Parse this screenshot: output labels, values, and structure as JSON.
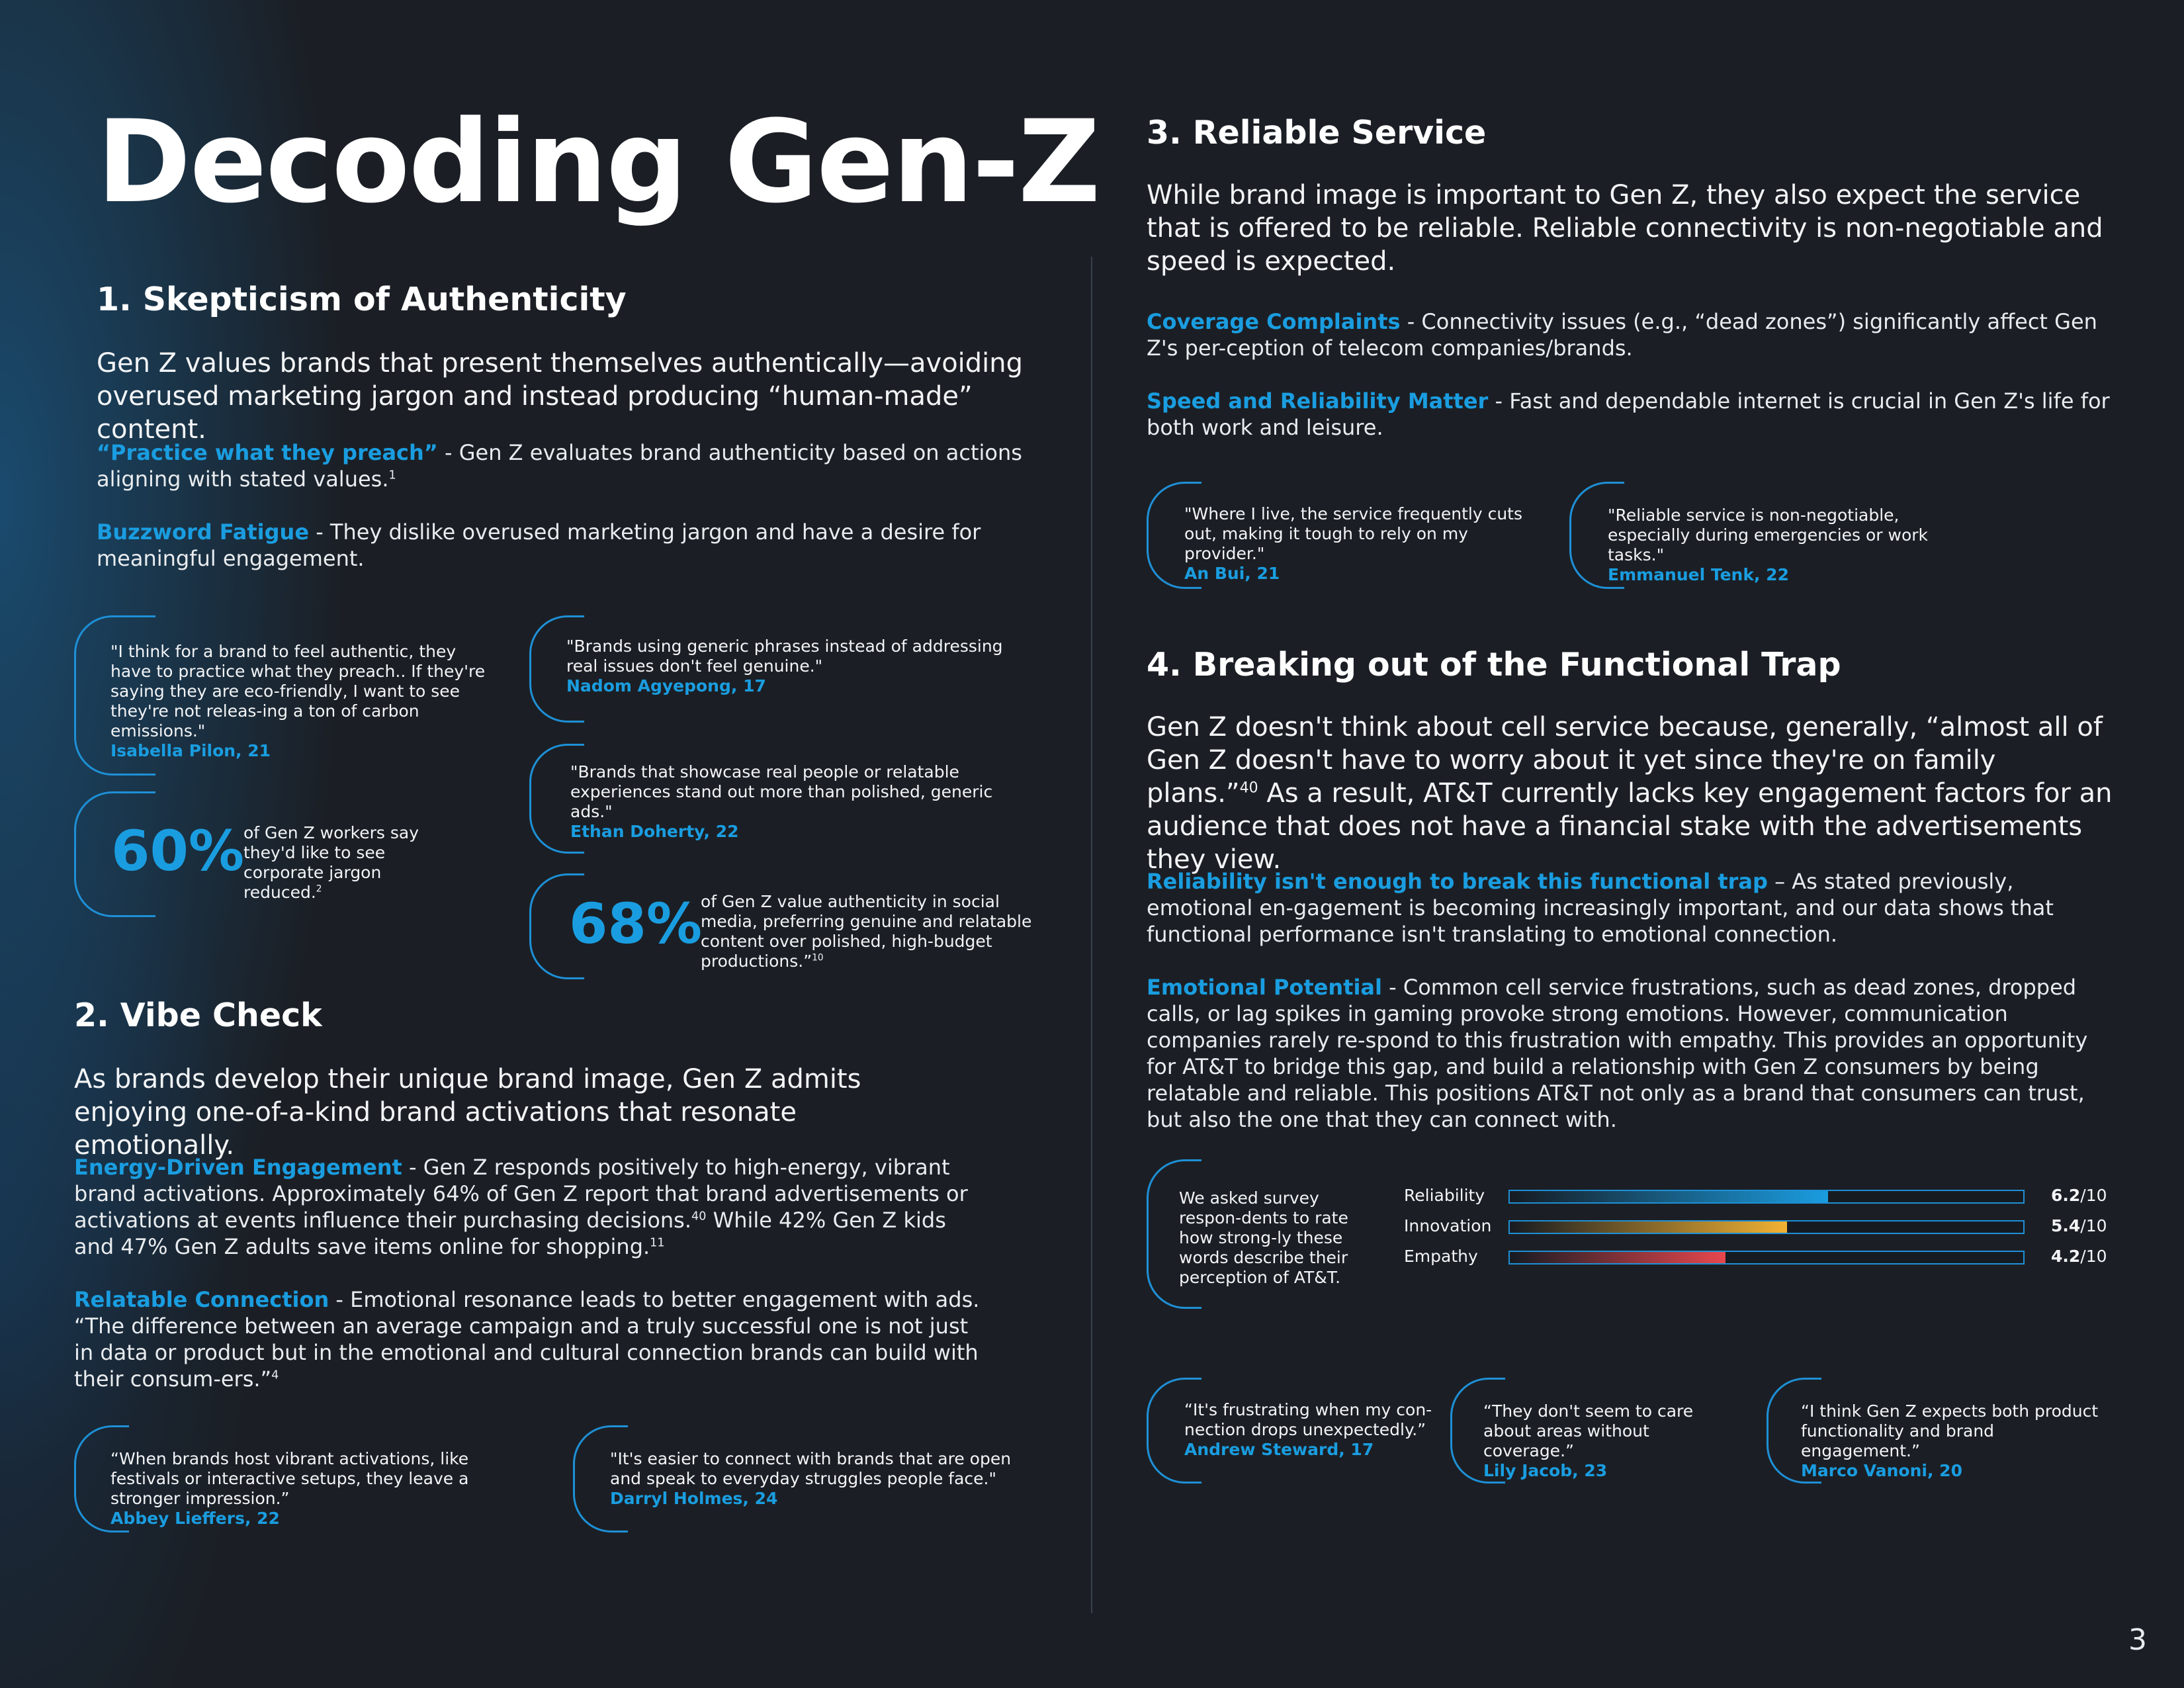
{
  "page": {
    "title": "Decoding Gen-Z",
    "page_number": "3"
  },
  "section1": {
    "heading": "1. Skepticism of Authenticity",
    "lead": "Gen Z values brands that present themselves authentically—avoiding overused marketing jargon and instead producing “human-made” content.",
    "points": [
      {
        "label": "“Practice what they preach”",
        "text": " - Gen Z evaluates brand authenticity based on actions aligning with stated values.",
        "sup": "1"
      },
      {
        "label": "Buzzword Fatigue",
        "text": " - They dislike overused marketing jargon and have a desire for meaningful engagement.",
        "sup": ""
      }
    ],
    "quotes": [
      {
        "text": "\"I think for a brand to feel authentic, they have to practice what they preach.. If they're saying they are eco-friendly, I want to see they're not releas-ing a ton of carbon emissions.\"",
        "name": "Isabella Pilon, 21"
      },
      {
        "text": "\"Brands using generic phrases instead of addressing real issues don't feel genuine.\"",
        "name": "Nadom Agyepong, 17"
      },
      {
        "text": "\"Brands that showcase real people or relatable experiences stand out more than polished, generic ads.\"",
        "name": "Ethan Doherty, 22"
      }
    ],
    "stats": [
      {
        "value": "60%",
        "text": "of Gen Z workers say they'd like to see corporate jargon reduced.",
        "sup": "2"
      },
      {
        "value": "68%",
        "text": "of Gen Z value authenticity in social media, preferring genuine and relatable content over polished, high-budget productions.”",
        "sup": "10"
      }
    ]
  },
  "section2": {
    "heading": "2. Vibe Check",
    "lead": "As brands develop their unique brand image, Gen Z admits enjoying one-of-a-kind brand activations that resonate emotionally.",
    "points": [
      {
        "label": "Energy-Driven Engagement",
        "text": " - Gen Z responds positively to high-energy, vibrant brand activations. Approximately 64% of Gen Z report that brand advertisements or activations at events influence their purchasing decisions.",
        "sup": "40",
        "text2": " While 42% Gen Z kids and 47% Gen Z adults save items online for shopping.",
        "sup2": "11"
      },
      {
        "label": "Relatable Connection",
        "text": " - Emotional resonance leads to better engagement with ads. “The difference between an average campaign and a truly successful one is not just in data or product but in the emotional and cultural connection brands can build with their consum-ers.”",
        "sup": "4"
      }
    ],
    "quotes": [
      {
        "text": "“When brands host vibrant activations, like festivals or interactive setups, they leave a stronger impression.”",
        "name": "Abbey Lieffers, 22"
      },
      {
        "text": "\"It's easier to connect with brands that are open and speak to everyday struggles people face.\"",
        "name": "Darryl Holmes, 24"
      }
    ]
  },
  "section3": {
    "heading": "3. Reliable Service",
    "lead": "While brand image is important to Gen Z, they also expect the service that is offered to be reliable. Reliable connectivity is non-negotiable and speed is expected.",
    "points": [
      {
        "label": "Coverage Complaints",
        "text": " - Connectivity issues (e.g., “dead zones”) significantly affect Gen Z's per-ception of telecom companies/brands."
      },
      {
        "label": "Speed and Reliability Matter",
        "text": " - Fast and dependable internet is crucial in Gen Z's life for both work and leisure."
      }
    ],
    "quotes": [
      {
        "text": "\"Where I live, the service frequently cuts out, making it tough to rely on my provider.\"",
        "name": "An Bui, 21"
      },
      {
        "text": "\"Reliable service is non-negotiable, especially during emergencies or work tasks.\"",
        "name": "Emmanuel Tenk, 22"
      }
    ]
  },
  "section4": {
    "heading": "4. Breaking out of the Functional Trap",
    "lead": "Gen Z doesn't think about cell service because, generally, “almost all of Gen Z doesn't have to worry about it yet since they're on family plans.”",
    "lead_sup": "40",
    "lead2": " As a result, AT&T currently lacks key engagement factors for an audience that does not have a financial stake with the advertisements they view.",
    "points": [
      {
        "label": "Reliability isn't enough to break this functional trap",
        "text": " – As stated previously, emotional en-gagement is becoming increasingly important, and our data shows that functional performance isn't translating to emotional connection."
      },
      {
        "label": "Emotional Potential",
        "text": " - Common cell service frustrations, such as dead zones, dropped calls, or lag spikes in gaming provoke strong emotions. However, communication companies rarely re-spond to this frustration with empathy. This provides an opportunity for AT&T to bridge this gap, and build a relationship with Gen Z consumers by being relatable and reliable. This positions AT&T not only as a brand that consumers can trust, but also the one that they can connect with."
      }
    ],
    "survey_intro": "We asked survey respon-dents to rate how strong-ly these words describe their perception of AT&T.",
    "quotes": [
      {
        "text": "“It's frustrating when my con-nection drops unexpectedly.”",
        "name": "Andrew Steward, 17"
      },
      {
        "text": "“They don't seem to care about areas without coverage.”",
        "name": "Lily Jacob, 23"
      },
      {
        "text": "“I think Gen Z expects both product functionality and brand engagement.”",
        "name": "Marco Vanoni, 20"
      }
    ]
  },
  "chart_data": {
    "type": "bar",
    "orientation": "horizontal",
    "categories": [
      "Reliability",
      "Innovation",
      "Empathy"
    ],
    "values": [
      6.2,
      5.4,
      4.2
    ],
    "value_labels": [
      "6.2",
      "5.4",
      "4.2"
    ],
    "suffix": "/10",
    "xlim": [
      0,
      10
    ],
    "colors": [
      "#1a9de0",
      "#f2b233",
      "#e8474d"
    ]
  }
}
